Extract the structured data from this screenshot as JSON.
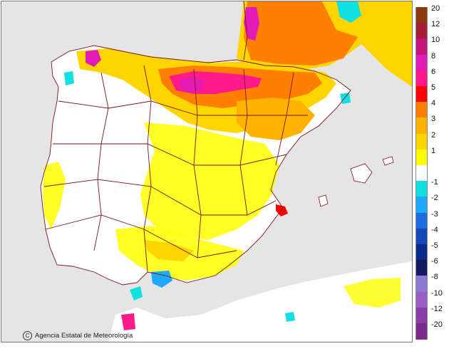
{
  "map": {
    "attribution": "Agencia Estatal de Meteorología",
    "copyright_symbol": "C",
    "watermark": "aemet",
    "colors": {
      "sea": "#e5e5e5",
      "land_neutral": "#ffffff",
      "border": "#7b1414"
    }
  },
  "legend": {
    "items": [
      {
        "label": "20",
        "color": "#8b3a0f"
      },
      {
        "label": "12",
        "color": "#a31e36"
      },
      {
        "label": "10",
        "color": "#c4157e"
      },
      {
        "label": "8",
        "color": "#e21bb6"
      },
      {
        "label": "6",
        "color": "#ff1a8c"
      },
      {
        "label": "5",
        "color": "#ff0000"
      },
      {
        "label": "4",
        "color": "#ff7f00"
      },
      {
        "label": "3",
        "color": "#ffb300"
      },
      {
        "label": "2",
        "color": "#ffd500"
      },
      {
        "label": "1",
        "color": "#ffff00"
      },
      {
        "label": "",
        "color": "#ffffff"
      },
      {
        "label": "-1",
        "color": "#10e0e0"
      },
      {
        "label": "-2",
        "color": "#1fa8ff"
      },
      {
        "label": "-3",
        "color": "#1a6ee0"
      },
      {
        "label": "-4",
        "color": "#1447b8"
      },
      {
        "label": "-5",
        "color": "#0d2a8a"
      },
      {
        "label": "-6",
        "color": "#141a5e"
      },
      {
        "label": "-8",
        "color": "#8a7ad6"
      },
      {
        "label": "-10",
        "color": "#9a5ec8"
      },
      {
        "label": "-12",
        "color": "#8a3ca8"
      },
      {
        "label": "-20",
        "color": "#7a2a8a"
      }
    ]
  }
}
